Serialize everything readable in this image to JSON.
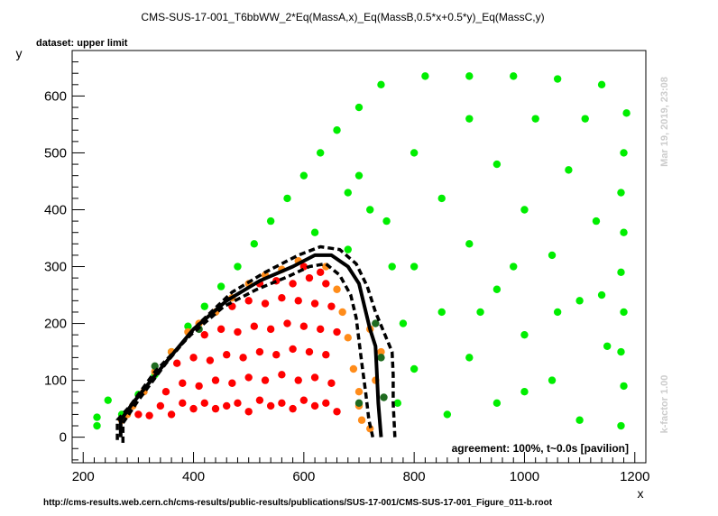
{
  "chart_data": {
    "type": "scatter",
    "title": "CMS-SUS-17-001_T6bbWW_2*Eq(MassA,x)_Eq(MassB,0.5*x+0.5*y)_Eq(MassC,y)",
    "subtitle": "dataset: upper limit",
    "xlabel": "x",
    "ylabel": "y",
    "xlim": [
      180,
      1220
    ],
    "ylim": [
      -45,
      680
    ],
    "xticks": [
      200,
      400,
      600,
      800,
      1000,
      1200
    ],
    "yticks": [
      0,
      100,
      200,
      300,
      400,
      500,
      600
    ],
    "xtick_labels": [
      "200",
      "400",
      "600",
      "800",
      "1000",
      "1200"
    ],
    "ytick_labels": [
      "0",
      "100",
      "200",
      "300",
      "400",
      "500",
      "600"
    ],
    "grid": false,
    "agreement_label": "agreement: 100%, t~0.0s [pavilion]",
    "timestamp": "Mar 19, 2019, 23:08",
    "kfactor": "k-factor 1.00",
    "source_url": "http://cms-results.web.cern.ch/cms-results/public-results/publications/SUS-17-001/CMS-SUS-17-001_Figure_011-b.root",
    "colors": {
      "excluded": "#ff0000",
      "allowed": "#00ee00",
      "excluded_border": "#ff8c1a",
      "allowed_border": "#1f6b1f",
      "contour": "#000000"
    },
    "series": [
      {
        "points": [
          [
            300,
            40
          ],
          [
            320,
            38
          ],
          [
            340,
            55
          ],
          [
            360,
            40
          ],
          [
            380,
            60
          ],
          [
            400,
            50
          ],
          [
            420,
            60
          ],
          [
            440,
            50
          ],
          [
            460,
            55
          ],
          [
            480,
            60
          ],
          [
            500,
            45
          ],
          [
            520,
            65
          ],
          [
            540,
            55
          ],
          [
            560,
            60
          ],
          [
            580,
            50
          ],
          [
            600,
            65
          ],
          [
            620,
            55
          ],
          [
            640,
            60
          ],
          [
            660,
            45
          ],
          [
            350,
            80
          ],
          [
            380,
            95
          ],
          [
            410,
            90
          ],
          [
            440,
            100
          ],
          [
            470,
            95
          ],
          [
            500,
            105
          ],
          [
            530,
            100
          ],
          [
            560,
            110
          ],
          [
            590,
            100
          ],
          [
            620,
            105
          ],
          [
            650,
            95
          ],
          [
            370,
            130
          ],
          [
            400,
            140
          ],
          [
            430,
            135
          ],
          [
            460,
            145
          ],
          [
            490,
            140
          ],
          [
            520,
            150
          ],
          [
            550,
            145
          ],
          [
            580,
            155
          ],
          [
            610,
            150
          ],
          [
            640,
            145
          ],
          [
            420,
            180
          ],
          [
            450,
            190
          ],
          [
            480,
            185
          ],
          [
            510,
            195
          ],
          [
            540,
            190
          ],
          [
            570,
            200
          ],
          [
            600,
            195
          ],
          [
            630,
            190
          ],
          [
            660,
            185
          ],
          [
            470,
            230
          ],
          [
            500,
            240
          ],
          [
            530,
            235
          ],
          [
            560,
            245
          ],
          [
            590,
            240
          ],
          [
            620,
            235
          ],
          [
            650,
            230
          ],
          [
            520,
            270
          ],
          [
            550,
            275
          ],
          [
            580,
            270
          ],
          [
            610,
            280
          ],
          [
            640,
            270
          ],
          [
            600,
            300
          ],
          [
            630,
            290
          ]
        ]
      },
      {
        "points": [
          [
            225,
            20
          ],
          [
            225,
            35
          ],
          [
            245,
            65
          ],
          [
            270,
            40
          ],
          [
            300,
            75
          ],
          [
            330,
            110
          ],
          [
            360,
            150
          ],
          [
            390,
            195
          ],
          [
            420,
            230
          ],
          [
            450,
            265
          ],
          [
            480,
            300
          ],
          [
            510,
            340
          ],
          [
            540,
            380
          ],
          [
            570,
            420
          ],
          [
            600,
            460
          ],
          [
            630,
            500
          ],
          [
            660,
            540
          ],
          [
            700,
            580
          ],
          [
            740,
            620
          ],
          [
            820,
            635
          ],
          [
            900,
            635
          ],
          [
            980,
            635
          ],
          [
            1060,
            630
          ],
          [
            1140,
            620
          ],
          [
            1185,
            570
          ],
          [
            1180,
            500
          ],
          [
            1175,
            430
          ],
          [
            1180,
            360
          ],
          [
            1175,
            290
          ],
          [
            1180,
            220
          ],
          [
            1175,
            150
          ],
          [
            1180,
            90
          ],
          [
            1175,
            20
          ],
          [
            900,
            560
          ],
          [
            950,
            480
          ],
          [
            1000,
            400
          ],
          [
            1050,
            320
          ],
          [
            1100,
            240
          ],
          [
            1150,
            160
          ],
          [
            800,
            500
          ],
          [
            850,
            420
          ],
          [
            900,
            340
          ],
          [
            950,
            260
          ],
          [
            1000,
            180
          ],
          [
            1050,
            100
          ],
          [
            1100,
            30
          ],
          [
            700,
            460
          ],
          [
            750,
            380
          ],
          [
            800,
            300
          ],
          [
            850,
            220
          ],
          [
            900,
            140
          ],
          [
            950,
            60
          ],
          [
            800,
            120
          ],
          [
            860,
            40
          ],
          [
            770,
            60
          ],
          [
            780,
            200
          ],
          [
            760,
            300
          ],
          [
            720,
            400
          ],
          [
            680,
            430
          ],
          [
            620,
            360
          ],
          [
            680,
            330
          ],
          [
            1080,
            470
          ],
          [
            1130,
            380
          ],
          [
            1020,
            560
          ],
          [
            1110,
            560
          ],
          [
            980,
            300
          ],
          [
            1060,
            220
          ],
          [
            920,
            220
          ],
          [
            1000,
            80
          ],
          [
            1140,
            250
          ]
        ]
      },
      {
        "points": [
          [
            270,
            30
          ],
          [
            280,
            40
          ],
          [
            290,
            55
          ],
          [
            310,
            80
          ],
          [
            330,
            115
          ],
          [
            360,
            150
          ],
          [
            390,
            185
          ],
          [
            410,
            200
          ],
          [
            440,
            220
          ],
          [
            470,
            245
          ],
          [
            500,
            270
          ],
          [
            530,
            285
          ],
          [
            560,
            295
          ],
          [
            590,
            310
          ],
          [
            640,
            300
          ],
          [
            660,
            260
          ],
          [
            670,
            220
          ],
          [
            680,
            175
          ],
          [
            690,
            120
          ],
          [
            700,
            80
          ],
          [
            700,
            55
          ],
          [
            705,
            30
          ],
          [
            720,
            15
          ],
          [
            730,
            100
          ],
          [
            740,
            150
          ],
          [
            720,
            190
          ]
        ]
      },
      {
        "points": [
          [
            330,
            125
          ],
          [
            410,
            190
          ],
          [
            700,
            60
          ],
          [
            740,
            140
          ],
          [
            745,
            70
          ],
          [
            730,
            200
          ]
        ]
      }
    ],
    "contours": [
      {
        "style": "solid",
        "points": [
          [
            268,
            0
          ],
          [
            268,
            30
          ],
          [
            290,
            60
          ],
          [
            340,
            120
          ],
          [
            400,
            190
          ],
          [
            460,
            240
          ],
          [
            520,
            275
          ],
          [
            580,
            300
          ],
          [
            620,
            320
          ],
          [
            650,
            320
          ],
          [
            680,
            300
          ],
          [
            700,
            270
          ],
          [
            710,
            230
          ],
          [
            720,
            190
          ],
          [
            730,
            160
          ],
          [
            732,
            120
          ],
          [
            735,
            60
          ],
          [
            740,
            0
          ]
        ]
      },
      {
        "style": "dashed",
        "points": [
          [
            272,
            -10
          ],
          [
            272,
            25
          ],
          [
            300,
            65
          ],
          [
            350,
            130
          ],
          [
            410,
            200
          ],
          [
            470,
            255
          ],
          [
            530,
            290
          ],
          [
            590,
            320
          ],
          [
            630,
            335
          ],
          [
            665,
            330
          ],
          [
            695,
            305
          ],
          [
            715,
            265
          ],
          [
            730,
            220
          ],
          [
            745,
            185
          ],
          [
            760,
            150
          ],
          [
            762,
            110
          ],
          [
            762,
            60
          ],
          [
            765,
            0
          ]
        ]
      },
      {
        "style": "dashed",
        "points": [
          [
            262,
            -5
          ],
          [
            262,
            30
          ],
          [
            285,
            55
          ],
          [
            330,
            115
          ],
          [
            395,
            180
          ],
          [
            455,
            230
          ],
          [
            515,
            260
          ],
          [
            570,
            282
          ],
          [
            610,
            300
          ],
          [
            640,
            305
          ],
          [
            665,
            285
          ],
          [
            685,
            250
          ],
          [
            695,
            210
          ],
          [
            700,
            170
          ],
          [
            705,
            130
          ],
          [
            712,
            80
          ],
          [
            718,
            30
          ],
          [
            725,
            0
          ]
        ]
      }
    ]
  }
}
